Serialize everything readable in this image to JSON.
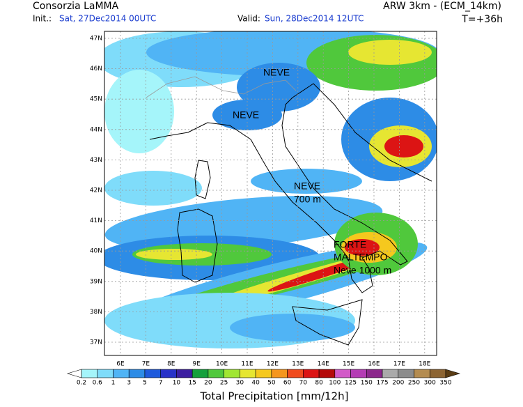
{
  "header": {
    "org": "Consorzia LaMMA",
    "init_label": "Init.:",
    "init": "Sat, 27Dec2014 00UTC",
    "valid_label": "Valid:",
    "valid": "Sun, 28Dec2014 12UTC",
    "model": "ARW 3km - (ECM_14km)",
    "lead": "T=+36h"
  },
  "map": {
    "lat_labels": [
      "47N",
      "46N",
      "45N",
      "44N",
      "43N",
      "42N",
      "41N",
      "40N",
      "39N",
      "38N",
      "37N"
    ],
    "lon_labels": [
      "6E",
      "7E",
      "8E",
      "9E",
      "10E",
      "11E",
      "12E",
      "13E",
      "14E",
      "15E",
      "16E",
      "17E",
      "18E"
    ],
    "annotations": [
      "NEVE",
      "NEVE",
      "NEVE",
      "700 m",
      "FORTE",
      "MALTEMPO",
      "Neve 1000 m"
    ]
  },
  "colorbar": {
    "title": "Total Precipitation [mm/12h]",
    "ticks": [
      0.2,
      0.6,
      1,
      3,
      5,
      7,
      10,
      15,
      20,
      25,
      30,
      40,
      50,
      60,
      70,
      80,
      100,
      125,
      150,
      175,
      200,
      250,
      300,
      350
    ],
    "colors": [
      "#ffffff",
      "#a5f5fa",
      "#7fdcfa",
      "#50b4f5",
      "#2d8ce6",
      "#1e5adc",
      "#2832c8",
      "#3c1ea0",
      "#14a03c",
      "#50c83c",
      "#a0e632",
      "#e6e632",
      "#f5c81e",
      "#f5961e",
      "#f04b1e",
      "#dc1414",
      "#b40a0a",
      "#d25ac8",
      "#b43cb4",
      "#8c288c",
      "#aaaaaa",
      "#8c8c8c",
      "#b48c50",
      "#8c6432",
      "#5a3c14"
    ]
  }
}
